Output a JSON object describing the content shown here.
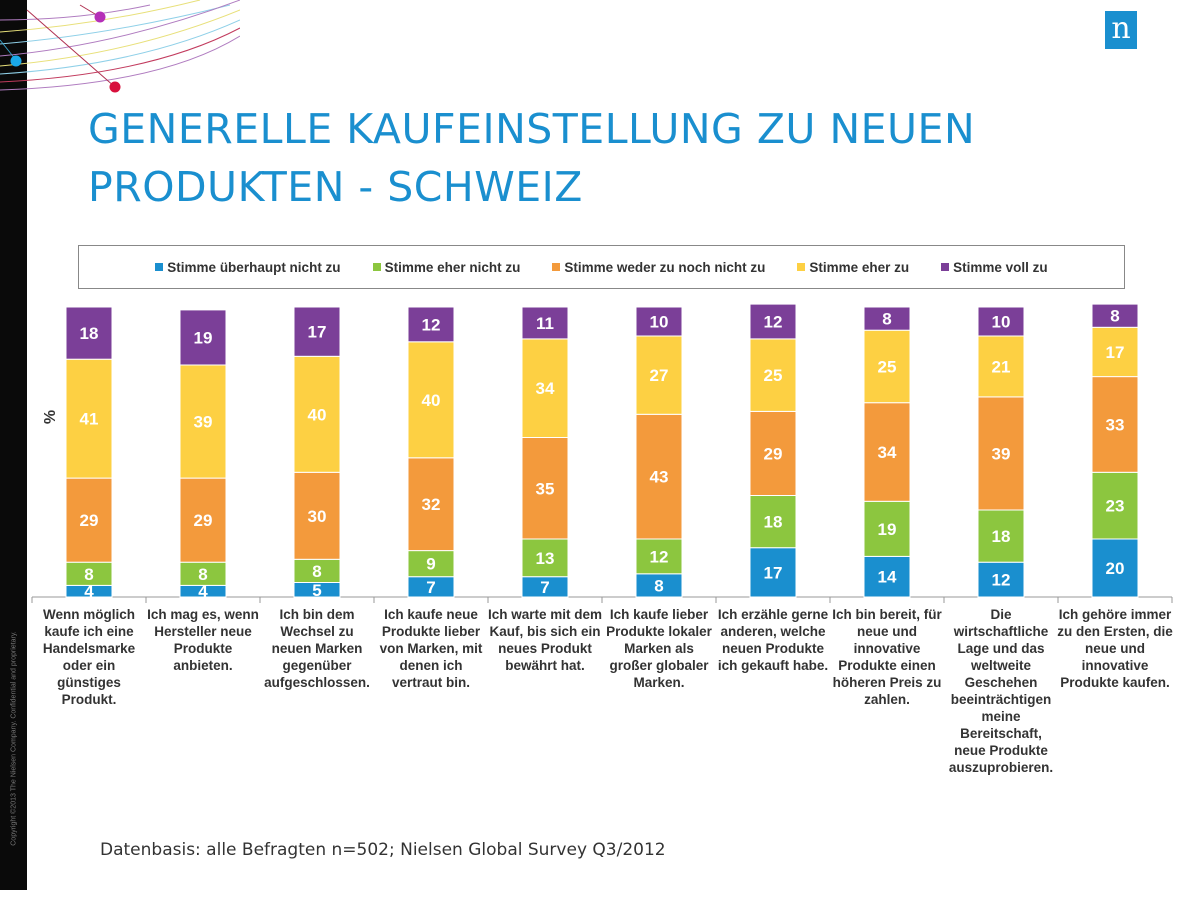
{
  "title": "GENERELLE KAUFEINSTELLUNG ZU NEUEN PRODUKTEN - SCHWEIZ",
  "logo_text": "n",
  "copyright": "Copyright ©2013 The Nielsen Company. Confidential and proprietary.",
  "source": "Datenbasis: alle Befragten n=502; Nielsen Global Survey Q3/2012",
  "chart_data": {
    "type": "bar",
    "stacked": true,
    "ylabel": "%",
    "ylim": [
      0,
      100
    ],
    "grid": false,
    "legend_position": "top",
    "categories": [
      "Wenn möglich kaufe ich eine Handelsmarke oder ein günstiges Produkt.",
      "Ich mag es, wenn Hersteller neue Produkte anbieten.",
      "Ich bin dem Wechsel zu neuen Marken gegenüber aufgeschlossen.",
      "Ich kaufe neue Produkte lieber von Marken, mit denen ich vertraut bin.",
      "Ich warte mit dem Kauf, bis sich ein neues Produkt bewährt hat.",
      "Ich kaufe lieber Produkte lokaler Marken als großer globaler Marken.",
      "Ich erzähle gerne anderen, welche neuen Produkte ich gekauft habe.",
      "Ich bin bereit, für neue und innovative Produkte einen höheren Preis zu zahlen.",
      "Die wirtschaftliche Lage und das weltweite Geschehen beeinträchtigen meine Bereitschaft, neue Produkte auszuprobieren.",
      "Ich gehöre immer zu den Ersten, die neue und innovative Produkte kaufen."
    ],
    "series": [
      {
        "name": "Stimme überhaupt nicht zu",
        "color": "#1a8fcf",
        "values": [
          4,
          4,
          5,
          7,
          7,
          8,
          17,
          14,
          12,
          20
        ]
      },
      {
        "name": "Stimme eher nicht zu",
        "color": "#8cc63f",
        "values": [
          8,
          8,
          8,
          9,
          13,
          12,
          18,
          19,
          18,
          23
        ]
      },
      {
        "name": "Stimme weder zu noch nicht zu",
        "color": "#f39a3c",
        "values": [
          29,
          29,
          30,
          32,
          35,
          43,
          29,
          34,
          39,
          33
        ]
      },
      {
        "name": "Stimme eher zu",
        "color": "#fdd043",
        "values": [
          41,
          39,
          40,
          40,
          34,
          27,
          25,
          25,
          21,
          17
        ]
      },
      {
        "name": "Stimme voll zu",
        "color": "#7b3f98",
        "values": [
          18,
          19,
          17,
          12,
          11,
          10,
          12,
          8,
          10,
          8
        ]
      }
    ]
  }
}
